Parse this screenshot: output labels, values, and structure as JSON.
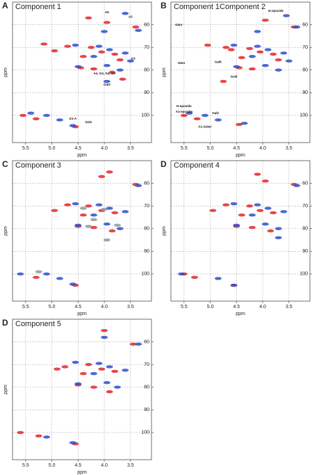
{
  "chart_data": [
    {
      "type": "scatter",
      "label": "A",
      "title": "Component 1",
      "xlabel": "ppm",
      "ylabel": "ppm",
      "xlim": [
        5.75,
        3.1
      ],
      "ylim": [
        50,
        112
      ],
      "xticks": [
        5.5,
        {
          "value": 5.0,
          "label": "5.0"
        },
        4.5,
        {
          "value": 4.0,
          "label": "4.0"
        },
        3.5
      ],
      "yticks": [
        60,
        70,
        80,
        90,
        100
      ],
      "grid": true,
      "series": [
        {
          "color": "#e3262b",
          "x": [
            4.3,
            3.95,
            3.4,
            5.15,
            4.7,
            4.25,
            4.05,
            3.8,
            4.4,
            3.7,
            4.45,
            4.2,
            3.85,
            5.55,
            5.3,
            4.55,
            4.95,
            3.65
          ],
          "values": [
            57,
            59,
            61,
            68.5,
            69.5,
            70,
            72,
            73,
            74,
            75.5,
            79,
            79.5,
            81,
            100,
            101.5,
            105,
            71.5,
            84
          ]
        },
        {
          "color": "#2a4fcf",
          "x": [
            3.6,
            4.0,
            3.35,
            4.55,
            4.1,
            3.9,
            3.6,
            4.2,
            3.5,
            3.95,
            4.5,
            3.7,
            3.95,
            5.1,
            4.85,
            4.6,
            5.4
          ],
          "values": [
            55,
            63,
            62.5,
            69,
            69.5,
            71,
            72.5,
            74,
            76,
            78,
            78.5,
            80,
            85,
            100,
            102,
            104.5,
            99
          ]
        }
      ],
      "annotations": [
        {
          "text": "A5",
          "x": 3.95,
          "y": 54.5
        },
        {
          "text": "A3",
          "x": 3.5,
          "y": 56.5
        },
        {
          "text": "G3",
          "x": 3.45,
          "y": 75
        },
        {
          "text": "Gal3",
          "x": 3.95,
          "y": 86.5
        },
        {
          "text": "A4, G3, G4, G6",
          "x": 4.0,
          "y": 81.5
        },
        {
          "text": "G1-A",
          "x": 4.6,
          "y": 101.5
        },
        {
          "text": "Gal1",
          "x": 4.3,
          "y": 103
        }
      ]
    },
    {
      "type": "scatter",
      "label": "B",
      "title": "Component 1Component 2",
      "xlabel": "ppm",
      "ylabel": "ppm",
      "xlim": [
        5.75,
        3.1
      ],
      "ylim": [
        50,
        112
      ],
      "xticks": [
        5.5,
        {
          "value": 5.0,
          "label": "5.0"
        },
        4.5,
        {
          "value": 4.0,
          "label": "4.0"
        },
        3.5
      ],
      "yticks": [
        60,
        70,
        80,
        90,
        100
      ],
      "grid": true,
      "series": [
        {
          "color": "#e3262b",
          "x": [
            3.95,
            3.4,
            5.05,
            4.7,
            4.25,
            4.05,
            3.8,
            4.4,
            3.7,
            4.45,
            4.2,
            4.75,
            5.5,
            5.25,
            4.45,
            4.6
          ],
          "values": [
            58,
            61,
            69,
            70,
            70.5,
            72,
            73,
            74.5,
            75.5,
            79,
            79.5,
            85,
            100,
            101.5,
            104,
            71
          ]
        },
        {
          "color": "#2a4fcf",
          "x": [
            3.55,
            4.1,
            3.35,
            4.55,
            4.1,
            3.9,
            3.6,
            4.2,
            3.5,
            3.95,
            4.5,
            3.7,
            5.1,
            4.85,
            4.35,
            5.4
          ],
          "values": [
            56,
            63,
            61,
            69,
            69.5,
            71,
            72.5,
            74,
            76,
            78,
            78.5,
            80,
            100,
            102,
            103.5,
            99
          ]
        }
      ],
      "annotations": [
        {
          "text": "Ω-epoxide",
          "x": 3.75,
          "y": 54
        },
        {
          "text": "G4nr",
          "x": 5.6,
          "y": 60
        },
        {
          "text": "G6nr",
          "x": 5.55,
          "y": 77
        },
        {
          "text": "Gal6",
          "x": 4.85,
          "y": 76.5
        },
        {
          "text": "Gal4",
          "x": 4.55,
          "y": 83
        },
        {
          "text": "H-epoxide",
          "x": 5.5,
          "y": 96
        },
        {
          "text": "A1-epoxide",
          "x": 5.5,
          "y": 98.5
        },
        {
          "text": "Gal2",
          "x": 4.9,
          "y": 99
        },
        {
          "text": "A1-Galac",
          "x": 5.1,
          "y": 105
        }
      ]
    },
    {
      "type": "scatter",
      "label": "C",
      "title": "Component 3",
      "xlabel": "ppm",
      "ylabel": "ppm",
      "xlim": [
        5.75,
        3.1
      ],
      "ylim": [
        50,
        112
      ],
      "xticks": [
        5.5,
        {
          "value": 5.0,
          "label": "5.0"
        },
        4.5,
        {
          "value": 4.0,
          "label": "4.0"
        },
        3.5
      ],
      "yticks": [
        60,
        70,
        80,
        90,
        100
      ],
      "grid": true,
      "series": [
        {
          "color": "#e3262b",
          "x": [
            4.05,
            3.4,
            4.7,
            4.3,
            4.05,
            3.8,
            4.4,
            4.5,
            4.2,
            3.85,
            5.3,
            4.55,
            4.95,
            3.9
          ],
          "values": [
            57,
            60.5,
            69.5,
            70,
            72,
            73,
            74,
            79,
            79.5,
            81,
            101.5,
            105,
            72,
            55
          ]
        },
        {
          "color": "#2a4fcf",
          "x": [
            3.35,
            4.55,
            4.1,
            3.9,
            3.6,
            4.2,
            3.95,
            4.5,
            3.7,
            5.1,
            4.85,
            4.6,
            5.6
          ],
          "values": [
            61,
            69,
            69.5,
            71,
            72.5,
            74,
            78,
            78.5,
            80,
            100,
            102,
            104.5,
            100
          ]
        },
        {
          "color": "#8a9a9a",
          "x": [
            4.4,
            4.0,
            3.75,
            4.3,
            5.25,
            4.2,
            3.95
          ],
          "values": [
            71,
            71.5,
            78.5,
            79,
            99,
            76,
            85
          ]
        }
      ]
    },
    {
      "type": "scatter",
      "label": "D",
      "title": "Component 4",
      "xlabel": "ppm",
      "ylabel": "ppm",
      "xlim": [
        5.75,
        3.1
      ],
      "ylim": [
        50,
        112
      ],
      "xticks": [
        5.5,
        {
          "value": 5.0,
          "label": "5.0"
        },
        4.5,
        {
          "value": 4.0,
          "label": "4.0"
        },
        3.5
      ],
      "yticks": [
        60,
        70,
        80,
        90,
        100
      ],
      "grid": true,
      "series": [
        {
          "color": "#e3262b",
          "x": [
            3.95,
            3.4,
            4.7,
            4.25,
            4.05,
            3.8,
            4.4,
            4.5,
            4.2,
            3.85,
            5.5,
            5.3,
            4.55,
            4.95,
            4.1
          ],
          "values": [
            59,
            60.5,
            69.5,
            70,
            72,
            73,
            74,
            79,
            79.5,
            81,
            100,
            101.5,
            105,
            72,
            56
          ]
        },
        {
          "color": "#2a4fcf",
          "x": [
            3.35,
            4.55,
            4.1,
            3.9,
            3.6,
            4.2,
            3.95,
            4.5,
            3.7,
            5.55,
            4.85,
            4.55,
            3.7
          ],
          "values": [
            61,
            69,
            69.5,
            71,
            72.5,
            74,
            78,
            78.5,
            80,
            100,
            102,
            105,
            84
          ]
        }
      ]
    },
    {
      "type": "scatter",
      "label": "D",
      "title": "Component 5",
      "xlabel": "ppm",
      "ylabel": "ppm",
      "xlim": [
        5.75,
        3.1
      ],
      "ylim": [
        50,
        112
      ],
      "xticks": [
        5.5,
        {
          "value": 5.0,
          "label": "5.0"
        },
        4.5,
        {
          "value": 4.0,
          "label": "4.0"
        },
        3.5
      ],
      "yticks": [
        60,
        70,
        80,
        90,
        100
      ],
      "grid": true,
      "series": [
        {
          "color": "#e3262b",
          "x": [
            4.0,
            3.45,
            4.75,
            4.3,
            4.05,
            3.8,
            4.4,
            4.5,
            4.2,
            3.9,
            5.6,
            5.25,
            4.55,
            4.9
          ],
          "values": [
            55,
            61,
            71,
            70,
            72,
            73,
            74,
            79,
            80,
            82,
            100,
            101.5,
            105,
            72
          ]
        },
        {
          "color": "#2a4fcf",
          "x": [
            3.35,
            4.55,
            4.1,
            3.9,
            3.6,
            4.2,
            3.95,
            4.5,
            3.75,
            5.1,
            4.6,
            4.0
          ],
          "values": [
            61,
            69,
            69.5,
            71,
            72.5,
            74,
            78,
            78.5,
            80,
            102,
            104.5,
            58
          ]
        }
      ]
    }
  ]
}
